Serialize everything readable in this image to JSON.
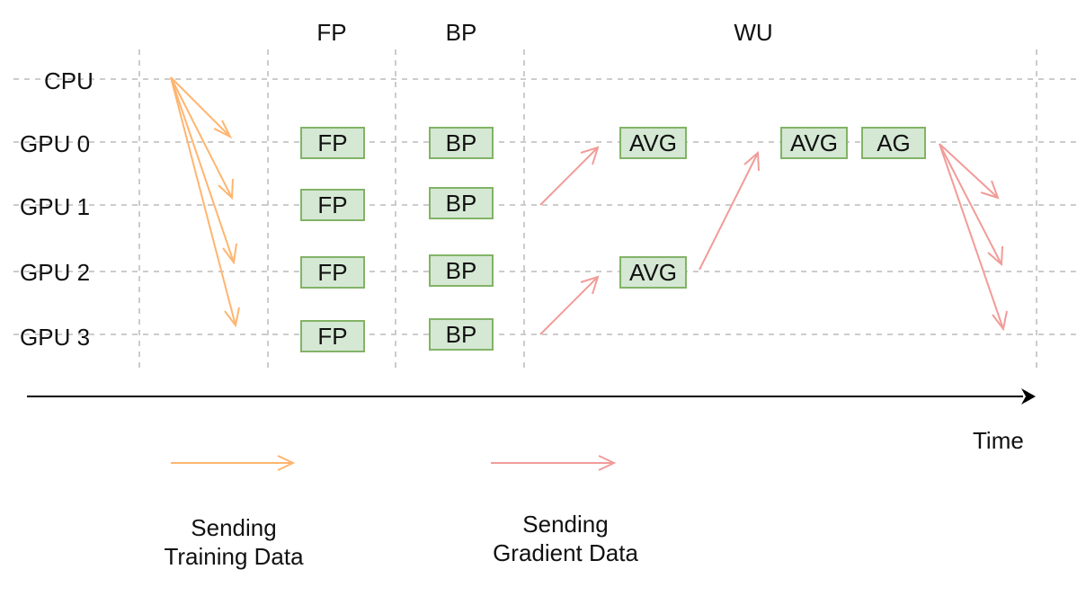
{
  "phases": {
    "fp": "FP",
    "bp": "BP",
    "wu": "WU"
  },
  "rows": {
    "cpu": "CPU",
    "gpu0": "GPU 0",
    "gpu1": "GPU 1",
    "gpu2": "GPU 2",
    "gpu3": "GPU 3"
  },
  "blocks": {
    "fp0": "FP",
    "fp1": "FP",
    "fp2": "FP",
    "fp3": "FP",
    "bp0": "BP",
    "bp1": "BP",
    "bp2": "BP",
    "bp3": "BP",
    "avg_gpu0_a": "AVG",
    "avg_gpu2": "AVG",
    "avg_gpu0_b": "AVG",
    "ag_gpu0": "AG"
  },
  "time_label": "Time",
  "legend": {
    "training_line1": "Sending",
    "training_line2": "Training Data",
    "gradient_line1": "Sending",
    "gradient_line2": "Gradient Data"
  },
  "colors": {
    "training_arrow": "#ffb570",
    "gradient_arrow": "#f19c99",
    "block_fill": "#d5e8d4",
    "block_border": "#82b366",
    "grid": "#cccccc",
    "time_axis": "#000000"
  }
}
